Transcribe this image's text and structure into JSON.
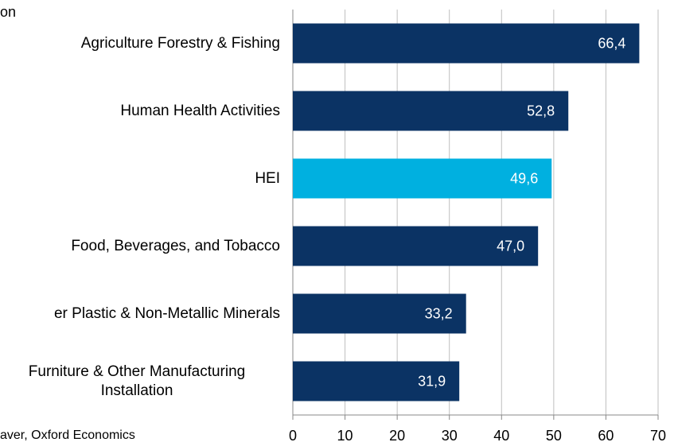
{
  "chart_data": {
    "type": "barh",
    "title": "on",
    "source": "aver, Oxford Economics",
    "categories": [
      "Agriculture Forestry & Fishing",
      "Human Health Activities",
      "HEI",
      "Food, Beverages, and Tobacco",
      "er Plastic & Non-Metallic Minerals",
      "Furniture & Other Manufacturing\nInstallation"
    ],
    "values": [
      66.4,
      52.8,
      49.6,
      47.0,
      33.2,
      31.9
    ],
    "value_labels": [
      "66,4",
      "52,8",
      "49,6",
      "47,0",
      "33,2",
      "31,9"
    ],
    "colors": [
      "#0b3364",
      "#0b3364",
      "#00b0e0",
      "#0b3364",
      "#0b3364",
      "#0b3364"
    ],
    "xlim": [
      0,
      70
    ],
    "xticks": [
      0,
      10,
      20,
      30,
      40,
      50,
      60,
      70
    ],
    "grid": true
  }
}
